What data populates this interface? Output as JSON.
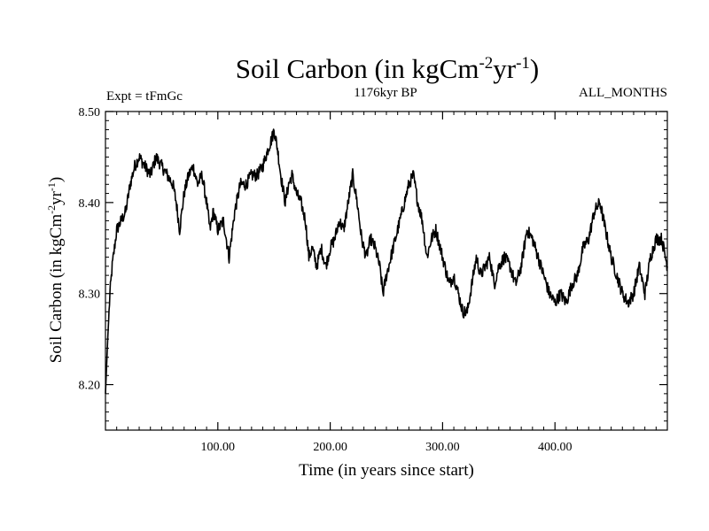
{
  "chart_data": {
    "type": "line",
    "title": {
      "main": "Soil Carbon (in kgCm",
      "exp1": "-2",
      "mid": "yr",
      "exp2": "-1",
      "close": ")"
    },
    "annotations": {
      "left": "Expt = tFmGc",
      "center": "1176kyr BP",
      "right": "ALL_MONTHS"
    },
    "xlabel": "Time (in years since start)",
    "ylabel": {
      "main": "Soil Carbon (in kgCm",
      "exp1": "-2",
      "mid": "yr",
      "exp2": "-1",
      "close": ")"
    },
    "xlim": [
      0,
      500
    ],
    "ylim": [
      8.15,
      8.5
    ],
    "xticks": [
      {
        "value": 100,
        "label": "100.00"
      },
      {
        "value": 200,
        "label": "200.00"
      },
      {
        "value": 300,
        "label": "300.00"
      },
      {
        "value": 400,
        "label": "400.00"
      }
    ],
    "yticks": [
      {
        "value": 8.2,
        "label": "8.20"
      },
      {
        "value": 8.3,
        "label": "8.30"
      },
      {
        "value": 8.4,
        "label": "8.40"
      },
      {
        "value": 8.5,
        "label": "8.50"
      }
    ],
    "series": [
      {
        "name": "Soil Carbon",
        "color": "#000000",
        "x": [
          0,
          2,
          4,
          6,
          8,
          10,
          14,
          18,
          22,
          26,
          30,
          35,
          40,
          45,
          50,
          55,
          60,
          63,
          66,
          70,
          74,
          78,
          82,
          86,
          90,
          93,
          96,
          100,
          105,
          110,
          115,
          120,
          125,
          130,
          135,
          140,
          145,
          148,
          150,
          153,
          156,
          160,
          163,
          166,
          170,
          174,
          178,
          181,
          184,
          188,
          192,
          196,
          200,
          204,
          208,
          212,
          216,
          220,
          224,
          228,
          232,
          236,
          240,
          244,
          247,
          250,
          254,
          258,
          262,
          266,
          270,
          274,
          278,
          282,
          286,
          290,
          294,
          298,
          302,
          306,
          310,
          314,
          318,
          322,
          326,
          330,
          334,
          338,
          342,
          346,
          350,
          355,
          360,
          365,
          370,
          375,
          380,
          385,
          390,
          395,
          400,
          405,
          410,
          415,
          420,
          425,
          430,
          435,
          440,
          445,
          450,
          455,
          460,
          465,
          470,
          475,
          480,
          485,
          490,
          495,
          500
        ],
        "values": [
          8.19,
          8.25,
          8.3,
          8.33,
          8.35,
          8.37,
          8.38,
          8.39,
          8.42,
          8.44,
          8.45,
          8.44,
          8.43,
          8.45,
          8.44,
          8.43,
          8.42,
          8.4,
          8.37,
          8.41,
          8.43,
          8.44,
          8.42,
          8.43,
          8.4,
          8.37,
          8.39,
          8.37,
          8.38,
          8.34,
          8.39,
          8.42,
          8.42,
          8.43,
          8.43,
          8.44,
          8.46,
          8.47,
          8.48,
          8.46,
          8.43,
          8.4,
          8.42,
          8.43,
          8.41,
          8.4,
          8.38,
          8.34,
          8.35,
          8.33,
          8.35,
          8.33,
          8.35,
          8.36,
          8.38,
          8.37,
          8.4,
          8.43,
          8.4,
          8.36,
          8.34,
          8.36,
          8.35,
          8.33,
          8.3,
          8.32,
          8.34,
          8.36,
          8.38,
          8.4,
          8.42,
          8.43,
          8.4,
          8.38,
          8.34,
          8.36,
          8.37,
          8.35,
          8.33,
          8.31,
          8.32,
          8.3,
          8.28,
          8.28,
          8.31,
          8.34,
          8.32,
          8.33,
          8.34,
          8.31,
          8.33,
          8.34,
          8.33,
          8.31,
          8.33,
          8.37,
          8.36,
          8.34,
          8.32,
          8.3,
          8.29,
          8.3,
          8.29,
          8.31,
          8.32,
          8.35,
          8.36,
          8.39,
          8.4,
          8.37,
          8.34,
          8.32,
          8.3,
          8.29,
          8.3,
          8.33,
          8.3,
          8.34,
          8.36,
          8.36,
          8.33
        ]
      }
    ]
  }
}
